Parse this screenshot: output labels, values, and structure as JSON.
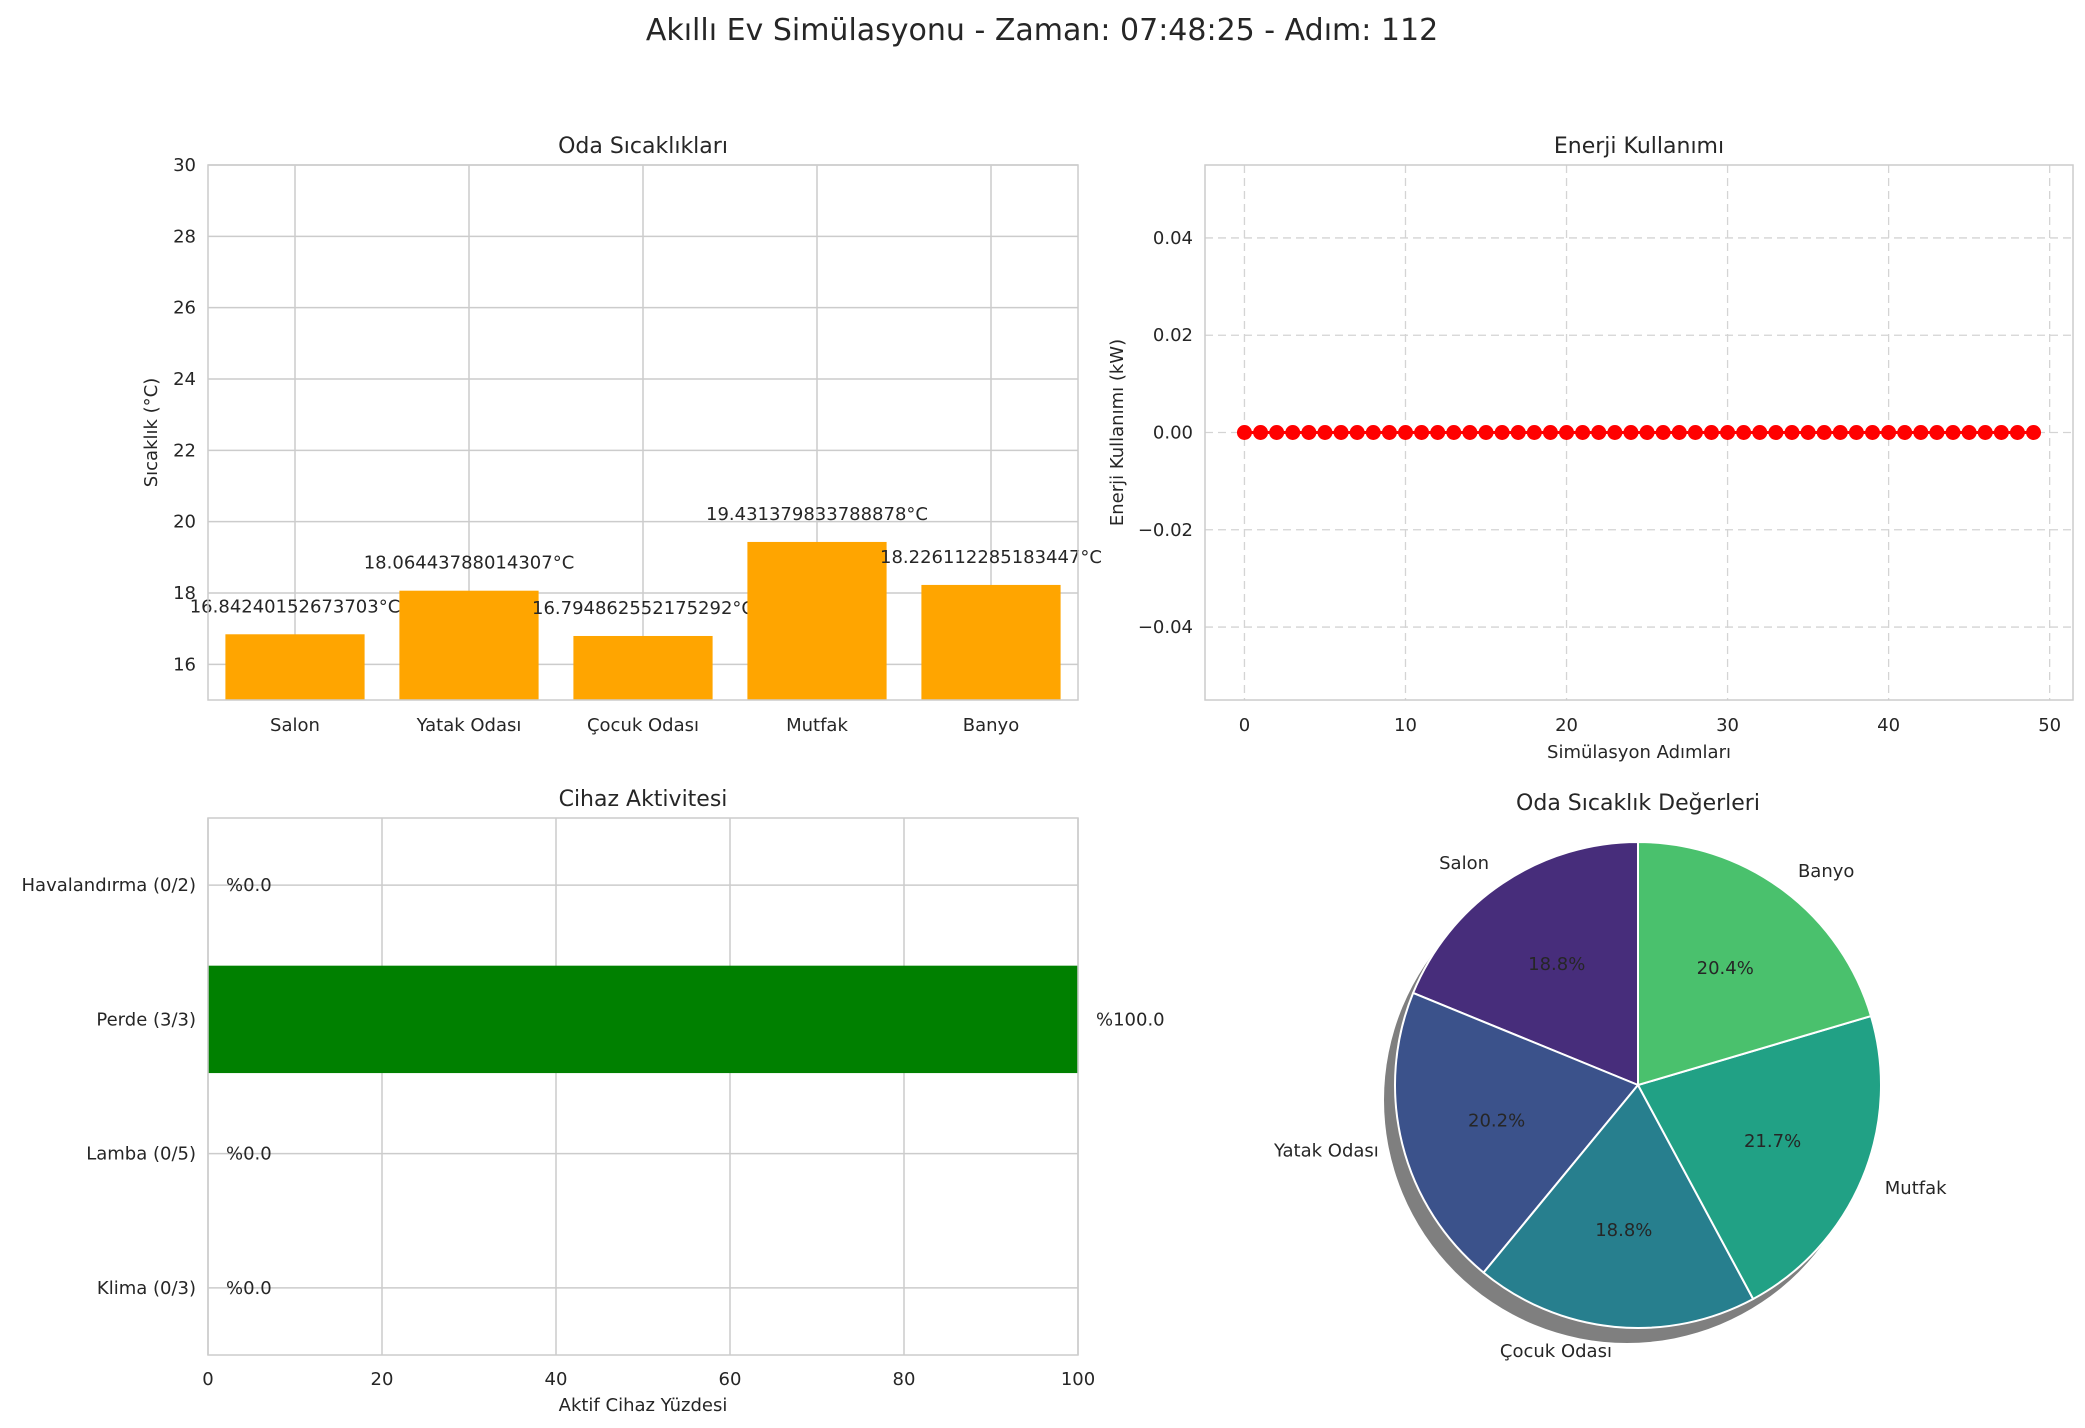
{
  "figure": {
    "suptitle": "Akıllı Ev Simülasyonu - Zaman: 07:48:25 - Adım: 112"
  },
  "chart_data": [
    {
      "type": "bar",
      "title": "Oda Sıcaklıkları",
      "xlabel": "",
      "ylabel": "Sıcaklık (°C)",
      "categories": [
        "Salon",
        "Yatak Odası",
        "Çocuk Odası",
        "Mutfak",
        "Banyo"
      ],
      "values": [
        16.84240152673703,
        18.06443788014307,
        16.794862552175292,
        19.431379833788878,
        18.226112285183447
      ],
      "data_labels": [
        "16.84240152673703°C",
        "18.06443788014307°C",
        "16.794862552175292°C",
        "19.431379833788878°C",
        "18.226112285183447°C"
      ],
      "ylim": [
        15,
        30
      ],
      "yticks": [
        16,
        18,
        20,
        22,
        24,
        26,
        28,
        30
      ],
      "bar_color": "#ffa500",
      "grid": true
    },
    {
      "type": "line",
      "title": "Enerji Kullanımı",
      "xlabel": "Simülasyon Adımları",
      "ylabel": "Enerji Kullanımı (kW)",
      "x": [
        0,
        1,
        2,
        3,
        4,
        5,
        6,
        7,
        8,
        9,
        10,
        11,
        12,
        13,
        14,
        15,
        16,
        17,
        18,
        19,
        20,
        21,
        22,
        23,
        24,
        25,
        26,
        27,
        28,
        29,
        30,
        31,
        32,
        33,
        34,
        35,
        36,
        37,
        38,
        39,
        40,
        41,
        42,
        43,
        44,
        45,
        46,
        47,
        48,
        49
      ],
      "y": [
        0,
        0,
        0,
        0,
        0,
        0,
        0,
        0,
        0,
        0,
        0,
        0,
        0,
        0,
        0,
        0,
        0,
        0,
        0,
        0,
        0,
        0,
        0,
        0,
        0,
        0,
        0,
        0,
        0,
        0,
        0,
        0,
        0,
        0,
        0,
        0,
        0,
        0,
        0,
        0,
        0,
        0,
        0,
        0,
        0,
        0,
        0,
        0,
        0,
        0
      ],
      "xlim": [
        -2.45,
        51.45
      ],
      "ylim": [
        -0.055,
        0.055
      ],
      "xticks": [
        0,
        10,
        20,
        30,
        40,
        50
      ],
      "yticks": [
        -0.04,
        -0.02,
        0.0,
        0.02,
        0.04
      ],
      "ytick_labels": [
        "−0.04",
        "−0.02",
        "0.00",
        "0.02",
        "0.04"
      ],
      "color": "#ff0000",
      "marker": "circle",
      "grid": true,
      "grid_style": "dashed"
    },
    {
      "type": "bar",
      "orientation": "horizontal",
      "title": "Cihaz Aktivitesi",
      "xlabel": "Aktif Cihaz Yüzdesi",
      "ylabel": "",
      "categories": [
        "Klima (0/3)",
        "Lamba (0/5)",
        "Perde (3/3)",
        "Havalandırma (0/2)"
      ],
      "values": [
        0.0,
        0.0,
        100.0,
        0.0
      ],
      "data_labels": [
        "%0.0",
        "%0.0",
        "%100.0",
        "%0.0"
      ],
      "xlim": [
        0,
        100
      ],
      "xticks": [
        0,
        20,
        40,
        60,
        80,
        100
      ],
      "bar_color": "#008000",
      "grid": true
    },
    {
      "type": "pie",
      "title": "Oda Sıcaklık Değerleri",
      "labels": [
        "Salon",
        "Yatak Odası",
        "Çocuk Odası",
        "Mutfak",
        "Banyo"
      ],
      "values": [
        18.8,
        20.2,
        18.8,
        21.7,
        20.4
      ],
      "pct_labels": [
        "18.8%",
        "20.2%",
        "18.8%",
        "21.7%",
        "20.4%"
      ],
      "colors": [
        "#472d7b",
        "#3b528b",
        "#277f8e",
        "#21a185",
        "#4ac16d"
      ],
      "startangle": 90,
      "shadow": true
    }
  ]
}
